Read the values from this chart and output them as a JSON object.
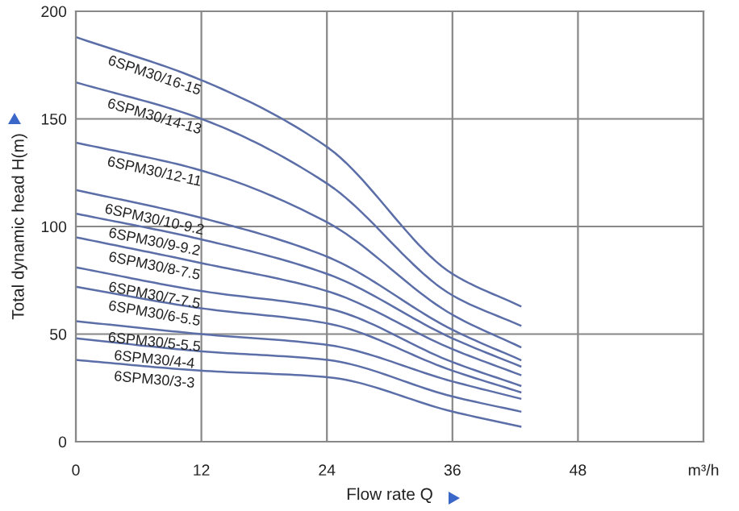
{
  "chart_data": {
    "type": "line",
    "xlabel": "Flow rate Q",
    "ylabel": "Total dynamic head H(m)",
    "xlim": [
      0,
      60
    ],
    "ylim": [
      0,
      200
    ],
    "xticks": [
      0,
      12,
      24,
      36,
      48,
      {
        "value": 60,
        "label": "m³/h"
      }
    ],
    "yticks": [
      0,
      50,
      100,
      150,
      200
    ],
    "grid": true,
    "marker": "none",
    "line_style": "solid",
    "x": [
      0,
      12,
      24,
      36,
      42.5
    ],
    "series": [
      {
        "name": "6SPM30/16-15",
        "color": "#5b6ea8",
        "values": [
          188,
          168,
          137,
          78,
          63
        ]
      },
      {
        "name": "6SPM30/14-13",
        "color": "#5b6ea8",
        "values": [
          167,
          150,
          120,
          68,
          54
        ]
      },
      {
        "name": "6SPM30/12-11",
        "color": "#5b6ea8",
        "values": [
          139,
          126,
          102,
          59,
          44
        ]
      },
      {
        "name": "6SPM30/10-9.2",
        "color": "#5b6ea8",
        "values": [
          117,
          104,
          86,
          52,
          38
        ]
      },
      {
        "name": "6SPM30/9-9.2",
        "color": "#5b6ea8",
        "values": [
          106,
          94,
          78,
          48,
          35
        ]
      },
      {
        "name": "6SPM30/8-7.5",
        "color": "#5b6ea8",
        "values": [
          95,
          83,
          70,
          43,
          31
        ]
      },
      {
        "name": "6SPM30/7-7.5",
        "color": "#5b6ea8",
        "values": [
          81,
          70,
          62,
          37,
          26
        ]
      },
      {
        "name": "6SPM30/6-5.5",
        "color": "#5b6ea8",
        "values": [
          72,
          62,
          55,
          33,
          23
        ]
      },
      {
        "name": "6SPM30/5-5.5",
        "color": "#5b6ea8",
        "values": [
          56,
          50,
          45,
          28,
          20
        ]
      },
      {
        "name": "6SPM30/4-4",
        "color": "#5b6ea8",
        "values": [
          48,
          42,
          38,
          21,
          14
        ]
      },
      {
        "name": "6SPM30/3-3",
        "color": "#5b6ea8",
        "values": [
          38,
          33,
          30,
          14,
          7
        ]
      }
    ]
  }
}
